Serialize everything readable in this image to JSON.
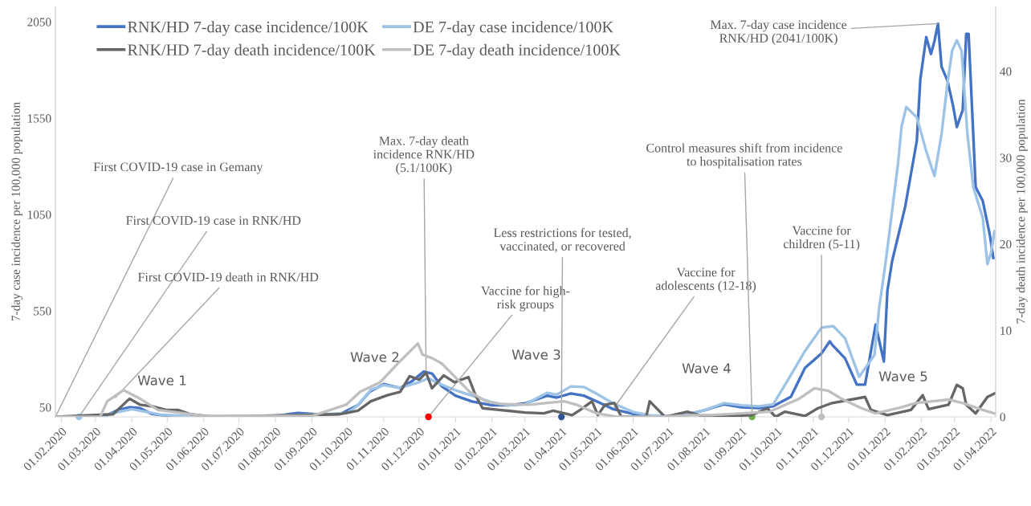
{
  "chart_data": {
    "type": "line",
    "ylabel": "7-day case incidence per 100,000 population",
    "y2label": "7-day death incidence per 100,000 population",
    "xlim": [
      "2020-01-27",
      "2022-04-05"
    ],
    "xticks": [
      {
        "value": "2020-02-01",
        "label": "01.02.2020"
      },
      {
        "value": "2020-03-01",
        "label": "01.03.2020"
      },
      {
        "value": "2020-04-01",
        "label": "01.04.2020"
      },
      {
        "value": "2020-05-01",
        "label": "01.05.2020"
      },
      {
        "value": "2020-06-01",
        "label": "01.06.2020"
      },
      {
        "value": "2020-07-01",
        "label": "01.07.2020"
      },
      {
        "value": "2020-08-01",
        "label": "01.08.2020"
      },
      {
        "value": "2020-09-01",
        "label": "01.09.2020"
      },
      {
        "value": "2020-10-01",
        "label": "01.10.2020"
      },
      {
        "value": "2020-11-01",
        "label": "01.11.2020"
      },
      {
        "value": "2020-12-01",
        "label": "01.12.2020"
      },
      {
        "value": "2021-01-01",
        "label": "01.01.2021"
      },
      {
        "value": "2021-02-01",
        "label": "01.02.2021"
      },
      {
        "value": "2021-03-01",
        "label": "01.03.2021"
      },
      {
        "value": "2021-04-01",
        "label": "01.04.2021"
      },
      {
        "value": "2021-05-01",
        "label": "01.05.2021"
      },
      {
        "value": "2021-06-01",
        "label": "01.06.2021"
      },
      {
        "value": "2021-07-01",
        "label": "01.07.2021"
      },
      {
        "value": "2021-08-01",
        "label": "01.08.2021"
      },
      {
        "value": "2021-09-01",
        "label": "01.09.2021"
      },
      {
        "value": "2021-10-01",
        "label": "01.10.2021"
      },
      {
        "value": "2021-11-01",
        "label": "01.11.2021"
      },
      {
        "value": "2021-12-01",
        "label": "01.12.2021"
      },
      {
        "value": "2022-01-01",
        "label": "01.01.2022"
      },
      {
        "value": "2022-02-01",
        "label": "01.02.2022"
      },
      {
        "value": "2022-03-01",
        "label": "01.03.2022"
      },
      {
        "value": "2022-04-01",
        "label": "01.04.2022"
      }
    ],
    "ylim": [
      0,
      2130
    ],
    "yticks": [
      50,
      550,
      1050,
      1550,
      2050
    ],
    "y2lim": [
      0,
      47.5
    ],
    "y2ticks": [
      0,
      10,
      20,
      30,
      40
    ],
    "legend": "top left",
    "series": [
      {
        "name": "RNK/HD 7-day case incidence/100K",
        "color": "#4472c4",
        "x": [
          "2020-01-27",
          "2020-02-25",
          "2020-03-10",
          "2020-03-20",
          "2020-03-30",
          "2020-04-08",
          "2020-04-18",
          "2020-05-01",
          "2020-06-01",
          "2020-07-01",
          "2020-08-01",
          "2020-08-20",
          "2020-09-10",
          "2020-09-25",
          "2020-10-10",
          "2020-10-20",
          "2020-11-01",
          "2020-11-15",
          "2020-11-25",
          "2020-12-05",
          "2020-12-12",
          "2020-12-20",
          "2021-01-01",
          "2021-01-15",
          "2021-02-01",
          "2021-02-15",
          "2021-03-01",
          "2021-03-20",
          "2021-03-28",
          "2021-04-09",
          "2021-04-20",
          "2021-05-01",
          "2021-05-15",
          "2021-06-01",
          "2021-06-15",
          "2021-07-01",
          "2021-07-15",
          "2021-08-01",
          "2021-08-17",
          "2021-09-01",
          "2021-09-16",
          "2021-09-28",
          "2021-10-13",
          "2021-10-25",
          "2021-11-08",
          "2021-11-15",
          "2021-11-17",
          "2021-11-28",
          "2021-12-08",
          "2021-12-15",
          "2021-12-24",
          "2021-12-31",
          "2022-01-03",
          "2022-01-07",
          "2022-01-18",
          "2022-01-28",
          "2022-01-31",
          "2022-02-05",
          "2022-02-09",
          "2022-02-12",
          "2022-02-15",
          "2022-02-18",
          "2022-02-23",
          "2022-02-28",
          "2022-03-03",
          "2022-03-08",
          "2022-03-11",
          "2022-03-13",
          "2022-03-16",
          "2022-03-19",
          "2022-03-25",
          "2022-03-31",
          "2022-04-03"
        ],
        "values": [
          0,
          0,
          5,
          35,
          50,
          45,
          15,
          5,
          0,
          0,
          5,
          20,
          12,
          15,
          60,
          130,
          170,
          150,
          185,
          235,
          225,
          160,
          110,
          80,
          60,
          60,
          70,
          110,
          100,
          121,
          110,
          80,
          40,
          15,
          5,
          5,
          10,
          35,
          65,
          50,
          45,
          55,
          104,
          254,
          329,
          392,
          375,
          304,
          167,
          167,
          479,
          287,
          654,
          808,
          1087,
          1433,
          1754,
          1971,
          1883,
          1950,
          2041,
          1817,
          1746,
          1608,
          1504,
          1592,
          1988,
          1988,
          1592,
          1192,
          1121,
          946,
          825
        ]
      },
      {
        "name": "DE 7-day case incidence/100K",
        "color": "#9dc3e6",
        "x": [
          "2020-01-27",
          "2020-03-05",
          "2020-03-20",
          "2020-04-01",
          "2020-04-10",
          "2020-04-25",
          "2020-05-15",
          "2020-06-15",
          "2020-07-15",
          "2020-08-15",
          "2020-09-15",
          "2020-10-01",
          "2020-10-10",
          "2020-10-21",
          "2020-11-01",
          "2020-11-15",
          "2020-12-01",
          "2020-12-09",
          "2020-12-17",
          "2020-12-31",
          "2021-01-15",
          "2021-02-01",
          "2021-02-15",
          "2021-03-01",
          "2021-03-20",
          "2021-03-28",
          "2021-04-09",
          "2021-04-20",
          "2021-05-01",
          "2021-05-15",
          "2021-06-01",
          "2021-06-15",
          "2021-07-01",
          "2021-07-15",
          "2021-08-01",
          "2021-08-17",
          "2021-09-01",
          "2021-09-16",
          "2021-09-28",
          "2021-10-13",
          "2021-10-25",
          "2021-11-08",
          "2021-11-18",
          "2021-11-28",
          "2021-12-10",
          "2021-12-23",
          "2021-12-27",
          "2022-01-02",
          "2022-01-12",
          "2022-01-15",
          "2022-01-19",
          "2022-01-28",
          "2022-02-05",
          "2022-02-12",
          "2022-02-18",
          "2022-02-23",
          "2022-02-27",
          "2022-03-03",
          "2022-03-07",
          "2022-03-12",
          "2022-03-17",
          "2022-03-25",
          "2022-03-29",
          "2022-04-01",
          "2022-04-04"
        ],
        "values": [
          0,
          0,
          25,
          40,
          30,
          12,
          5,
          3,
          3,
          10,
          15,
          20,
          60,
          140,
          165,
          150,
          180,
          200,
          175,
          140,
          110,
          75,
          60,
          65,
          125,
          115,
          158,
          155,
          120,
          70,
          25,
          8,
          5,
          10,
          35,
          71,
          60,
          55,
          65,
          217,
          342,
          463,
          471,
          408,
          208,
          321,
          567,
          825,
          1313,
          1504,
          1608,
          1554,
          1379,
          1250,
          1467,
          1729,
          1900,
          1954,
          1900,
          1467,
          1192,
          1033,
          792,
          850,
          963
        ]
      },
      {
        "name": "RNK/HD 7-day death incidence/100K",
        "color": "#666666",
        "axis": "y2",
        "x": [
          "2020-01-27",
          "2020-03-16",
          "2020-03-30",
          "2020-04-08",
          "2020-04-19",
          "2020-04-30",
          "2020-05-10",
          "2020-05-21",
          "2020-06-10",
          "2020-09-24",
          "2020-10-10",
          "2020-10-21",
          "2020-11-04",
          "2020-11-15",
          "2020-11-23",
          "2020-12-01",
          "2020-12-07",
          "2020-12-12",
          "2020-12-22",
          "2020-12-31",
          "2021-01-12",
          "2021-01-18",
          "2021-01-24",
          "2021-02-07",
          "2021-02-15",
          "2021-03-01",
          "2021-03-17",
          "2021-03-25",
          "2021-04-10",
          "2021-04-17",
          "2021-04-27",
          "2021-05-02",
          "2021-05-08",
          "2021-05-16",
          "2021-05-22",
          "2021-06-12",
          "2021-06-15",
          "2021-06-28",
          "2021-07-17",
          "2021-08-01",
          "2021-09-10",
          "2021-09-23",
          "2021-09-30",
          "2021-10-08",
          "2021-10-25",
          "2021-11-05",
          "2021-11-17",
          "2021-12-15",
          "2021-12-20",
          "2022-01-03",
          "2022-01-23",
          "2022-02-02",
          "2022-02-07",
          "2022-02-24",
          "2022-03-03",
          "2022-03-08",
          "2022-03-11",
          "2022-03-19",
          "2022-03-29",
          "2022-04-04"
        ],
        "values": [
          0,
          0.3,
          2.1,
          1.4,
          1.2,
          0.8,
          0.8,
          0.3,
          0,
          0.3,
          0.7,
          1.8,
          2.5,
          2.9,
          4.7,
          4.3,
          5.1,
          3.3,
          4.8,
          4.0,
          4.6,
          2.5,
          1.0,
          0.8,
          0.7,
          0.5,
          0.4,
          0.7,
          0.2,
          0.8,
          1.8,
          0.2,
          1.4,
          1.6,
          0,
          0,
          1.8,
          0,
          0.6,
          0,
          0.2,
          1.0,
          0,
          0.6,
          0.1,
          1.0,
          1.6,
          2.3,
          0.8,
          0.2,
          0.8,
          2.5,
          0.9,
          1.4,
          3.7,
          3.3,
          1.4,
          0.4,
          2.3,
          2.7
        ]
      },
      {
        "name": "DE 7-day death incidence/100K",
        "color": "#bfbfbf",
        "axis": "y2",
        "x": [
          "2020-01-27",
          "2020-03-05",
          "2020-03-11",
          "2020-03-25",
          "2020-04-08",
          "2020-04-23",
          "2020-05-10",
          "2020-06-01",
          "2020-09-01",
          "2020-09-30",
          "2020-10-12",
          "2020-10-29",
          "2020-11-11",
          "2020-11-30",
          "2020-12-04",
          "2020-12-12",
          "2020-12-20",
          "2020-12-31",
          "2021-01-13",
          "2021-01-27",
          "2021-02-07",
          "2021-03-05",
          "2021-04-03",
          "2021-04-14",
          "2021-05-01",
          "2021-05-18",
          "2021-06-25",
          "2021-07-20",
          "2021-08-06",
          "2021-09-25",
          "2021-10-20",
          "2021-11-02",
          "2021-11-14",
          "2021-11-25",
          "2021-12-12",
          "2021-12-24",
          "2022-01-12",
          "2022-01-27",
          "2022-02-24",
          "2022-03-08",
          "2022-03-25",
          "2022-04-04"
        ],
        "values": [
          0,
          0,
          1.8,
          3.1,
          2.1,
          0.8,
          0.5,
          0.1,
          0.1,
          1.4,
          2.9,
          4.0,
          5.9,
          8.5,
          7.2,
          6.8,
          6.2,
          4.7,
          2.9,
          1.8,
          1.5,
          1.4,
          1.8,
          1.4,
          0.4,
          0,
          0,
          0.2,
          0.2,
          0.6,
          2.1,
          3.3,
          3.0,
          2.1,
          1.0,
          0.4,
          1.0,
          1.6,
          2.0,
          1.6,
          0.8,
          0.4
        ]
      }
    ],
    "annotations": [
      {
        "text": "First COVID-19 case in Gemany",
        "x": "2020-01-27",
        "y": 0
      },
      {
        "text": "First COVID-19 case in RNK/HD",
        "x": "2020-02-16",
        "y": 0
      },
      {
        "text": "First COVID-19 death in RNK/HD",
        "x": "2020-03-18",
        "y": 100
      },
      {
        "text": "Max. 7-day death\nincidence RNK/HD\n(5.1/100K)",
        "x": "2020-12-07",
        "y": 228
      },
      {
        "text": "Vaccine for high-\nrisk groups",
        "x": "2020-12-09",
        "y": 0
      },
      {
        "text": "Less restrictions for tested,\nvaccinated, or recovered",
        "x": "2021-04-01",
        "y": 0
      },
      {
        "text": "Vaccine for\nadolescents (12-18)",
        "x": "2021-05-16",
        "y": 50
      },
      {
        "text": "Control measures shift from incidence\nto hospitalisation rates",
        "x": "2021-09-10",
        "y": 0
      },
      {
        "text": "Vaccine for\nchildren (5-11)",
        "x": "2021-11-08",
        "y": 0
      },
      {
        "text": "Max. 7-day case incidence\nRNK/HD (2041/100K)",
        "x": "2022-02-15",
        "y": 2041
      },
      "Wave 1",
      "Wave 2",
      "Wave 3",
      "Wave 4",
      "Wave 5"
    ]
  }
}
